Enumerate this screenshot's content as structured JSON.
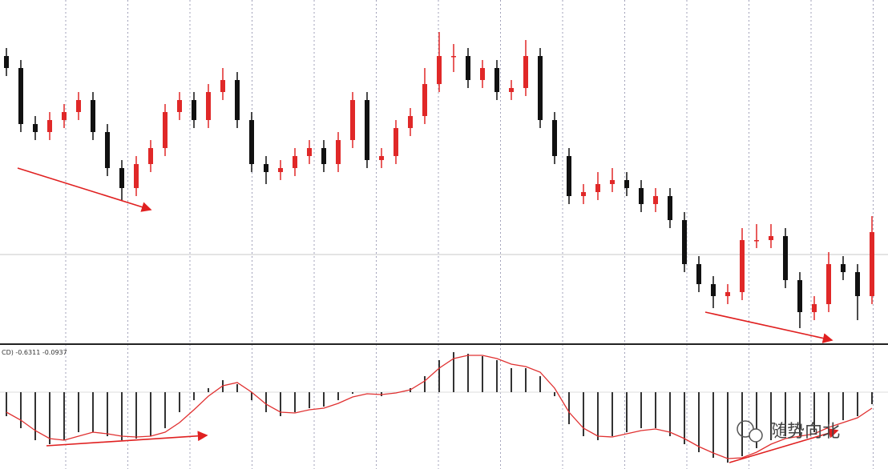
{
  "chart_data": [
    {
      "type": "candlestick",
      "up_color": "#e02828",
      "down_color": "#111111",
      "ylim": [
        0,
        430
      ],
      "open": [
        360,
        345,
        275,
        265,
        280,
        290,
        305,
        265,
        220,
        195,
        225,
        245,
        290,
        305,
        280,
        315,
        330,
        280,
        225,
        215,
        220,
        235,
        245,
        225,
        255,
        305,
        230,
        235,
        270,
        285,
        325,
        360,
        360,
        330,
        345,
        315,
        320,
        360,
        280,
        235,
        185,
        190,
        200,
        205,
        195,
        175,
        185,
        155,
        100,
        75,
        60,
        65,
        130,
        130,
        135,
        80,
        40,
        50,
        100,
        90,
        60
      ],
      "high": [
        370,
        355,
        285,
        290,
        300,
        315,
        315,
        275,
        230,
        235,
        255,
        300,
        315,
        315,
        325,
        345,
        340,
        290,
        235,
        230,
        245,
        255,
        255,
        265,
        315,
        315,
        245,
        280,
        295,
        345,
        390,
        375,
        370,
        355,
        355,
        330,
        380,
        370,
        290,
        245,
        200,
        215,
        220,
        215,
        205,
        195,
        195,
        165,
        110,
        85,
        75,
        145,
        150,
        150,
        145,
        90,
        60,
        115,
        110,
        100,
        160
      ],
      "low": [
        335,
        265,
        255,
        255,
        270,
        280,
        255,
        210,
        180,
        185,
        215,
        235,
        280,
        270,
        270,
        305,
        270,
        215,
        200,
        205,
        210,
        225,
        215,
        215,
        245,
        220,
        220,
        225,
        260,
        275,
        315,
        340,
        320,
        320,
        305,
        305,
        310,
        270,
        225,
        175,
        175,
        180,
        190,
        185,
        165,
        165,
        145,
        90,
        65,
        45,
        50,
        55,
        120,
        120,
        70,
        20,
        30,
        40,
        80,
        30,
        50
      ],
      "close": [
        345,
        275,
        265,
        280,
        290,
        305,
        265,
        220,
        195,
        225,
        245,
        290,
        305,
        280,
        315,
        330,
        280,
        225,
        215,
        220,
        235,
        245,
        225,
        255,
        305,
        230,
        235,
        270,
        285,
        325,
        360,
        360,
        330,
        345,
        315,
        320,
        360,
        280,
        235,
        185,
        190,
        200,
        205,
        195,
        175,
        185,
        155,
        100,
        75,
        60,
        65,
        130,
        130,
        135,
        80,
        40,
        50,
        100,
        90,
        60,
        140
      ]
    },
    {
      "type": "macd",
      "label": "CD) -0.6311 -0.0937",
      "color": "#333333",
      "signal_color": "#e03030",
      "ylim": [
        -96,
        58
      ],
      "values": [
        -30,
        -45,
        -60,
        -65,
        -60,
        -50,
        -50,
        -55,
        -60,
        -58,
        -55,
        -45,
        -25,
        -10,
        5,
        15,
        10,
        -10,
        -25,
        -30,
        -25,
        -20,
        -18,
        -10,
        -2,
        0,
        -5,
        0,
        5,
        20,
        40,
        50,
        48,
        45,
        40,
        30,
        30,
        20,
        -5,
        -40,
        -55,
        -60,
        -55,
        -50,
        -45,
        -45,
        -55,
        -65,
        -75,
        -82,
        -88,
        -80,
        -70,
        -60,
        -55,
        -55,
        -50,
        -40,
        -35,
        -30,
        -15
      ],
      "signal": [
        -25,
        -35,
        -48,
        -58,
        -60,
        -55,
        -50,
        -52,
        -55,
        -56,
        -55,
        -50,
        -38,
        -22,
        -5,
        8,
        12,
        0,
        -15,
        -25,
        -26,
        -22,
        -20,
        -14,
        -6,
        -2,
        -3,
        -1,
        3,
        14,
        30,
        42,
        46,
        46,
        42,
        35,
        32,
        25,
        5,
        -25,
        -45,
        -55,
        -56,
        -52,
        -48,
        -46,
        -50,
        -58,
        -68,
        -76,
        -83,
        -82,
        -75,
        -65,
        -58,
        -55,
        -52,
        -44,
        -38,
        -32,
        -20
      ]
    }
  ],
  "watermark": "随势向北"
}
